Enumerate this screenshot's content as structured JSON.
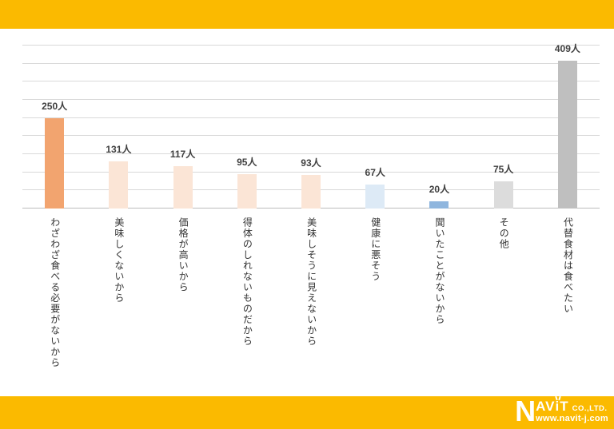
{
  "chart_data": {
    "type": "bar",
    "title": "",
    "categories": [
      "わざわざ食べる必要がないから",
      "美味しくないから",
      "価格が高いから",
      "得体のしれないものだから",
      "美味しそうに見えないから",
      "健康に悪そう",
      "聞いたことがないから",
      "その他",
      "代替食材は食べたい"
    ],
    "values": [
      250,
      131,
      117,
      95,
      93,
      67,
      20,
      75,
      409
    ],
    "value_labels": [
      "250人",
      "131人",
      "117人",
      "95人",
      "93人",
      "67人",
      "20人",
      "75人",
      "409人"
    ],
    "unit": "人",
    "ylim": [
      0,
      450
    ],
    "gridline_step": 50,
    "grid": true,
    "legend_position": "none",
    "bar_colors": [
      "#F2A46F",
      "#FBE5D6",
      "#FBE5D6",
      "#FBE5D6",
      "#FBE5D6",
      "#DDEAF6",
      "#8FB6DE",
      "#DCDCDC",
      "#BFBFBF"
    ]
  },
  "footer": {
    "logo_n": "N",
    "logo_av": "AV",
    "logo_i": "i",
    "logo_t": "T",
    "logo_suffix": "CO.,LTD.",
    "website": "www.navit-j.com"
  },
  "colors": {
    "band_yellow": "#FBBA00",
    "gridline": "#D9D9D9",
    "axis_line": "#BDBDBD",
    "value_label": "#3F3F3F",
    "category_label": "#333333"
  }
}
